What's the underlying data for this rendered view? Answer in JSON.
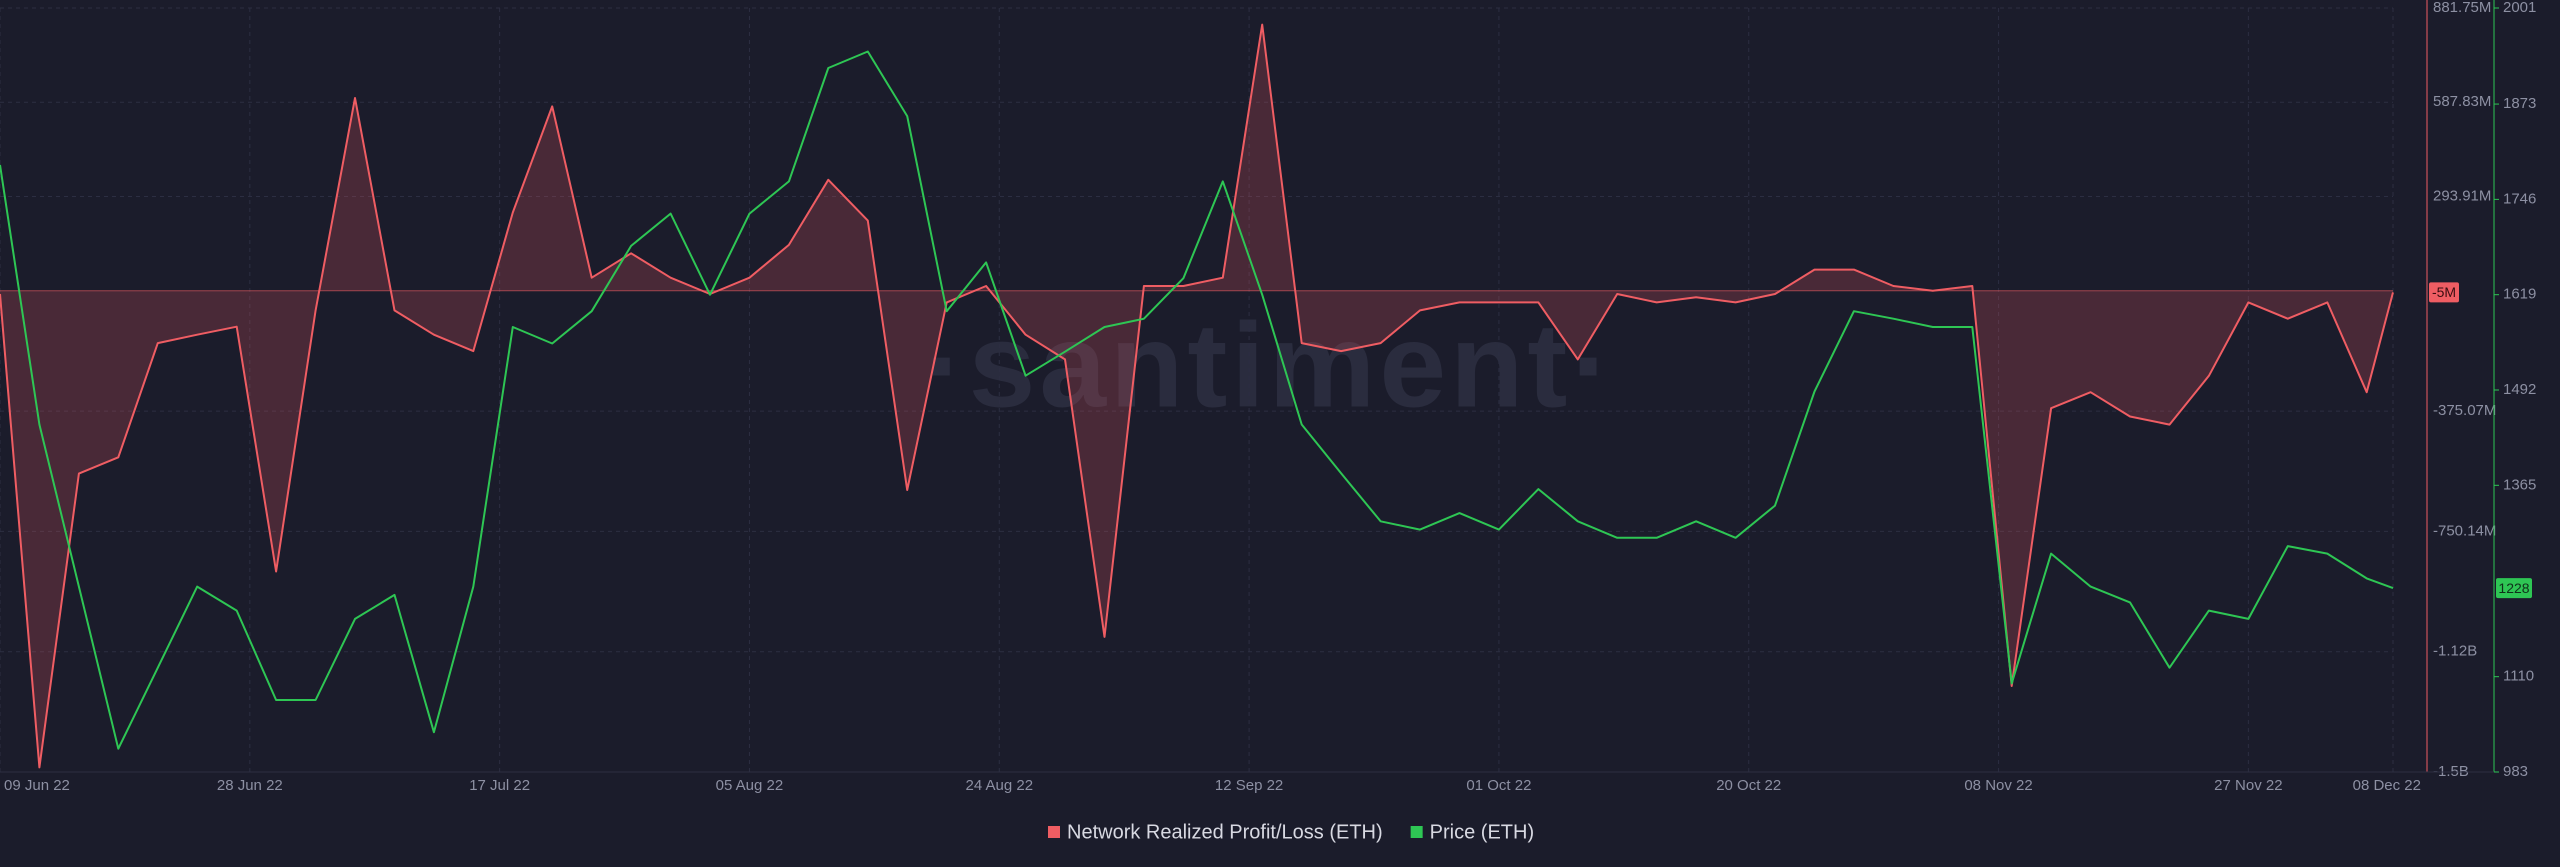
{
  "chart_data": {
    "type": "line",
    "watermark": "·santiment·",
    "x": [
      "2022-06-09",
      "2022-06-12",
      "2022-06-15",
      "2022-06-18",
      "2022-06-21",
      "2022-06-24",
      "2022-06-27",
      "2022-06-30",
      "2022-07-03",
      "2022-07-06",
      "2022-07-09",
      "2022-07-12",
      "2022-07-15",
      "2022-07-18",
      "2022-07-21",
      "2022-07-24",
      "2022-07-27",
      "2022-07-30",
      "2022-08-02",
      "2022-08-05",
      "2022-08-08",
      "2022-08-11",
      "2022-08-14",
      "2022-08-17",
      "2022-08-20",
      "2022-08-23",
      "2022-08-26",
      "2022-08-29",
      "2022-09-01",
      "2022-09-04",
      "2022-09-07",
      "2022-09-10",
      "2022-09-13",
      "2022-09-16",
      "2022-09-19",
      "2022-09-22",
      "2022-09-25",
      "2022-09-28",
      "2022-10-01",
      "2022-10-04",
      "2022-10-07",
      "2022-10-10",
      "2022-10-13",
      "2022-10-16",
      "2022-10-19",
      "2022-10-22",
      "2022-10-25",
      "2022-10-28",
      "2022-10-31",
      "2022-11-03",
      "2022-11-06",
      "2022-11-09",
      "2022-11-12",
      "2022-11-15",
      "2022-11-18",
      "2022-11-21",
      "2022-11-24",
      "2022-11-27",
      "2022-11-30",
      "2022-12-03",
      "2022-12-06",
      "2022-12-08"
    ],
    "series": [
      {
        "name": "Network Realized Profit/Loss (ETH)",
        "color": "#ef5d63",
        "axis": "y",
        "values": [
          -10,
          -1486,
          -570,
          -519,
          -163,
          -137,
          -112,
          -875,
          -61,
          601,
          -61,
          -137,
          -188,
          244,
          575,
          41,
          117,
          41,
          -10,
          41,
          143,
          346,
          219,
          -621,
          -36,
          15,
          -137,
          -214,
          -1079,
          15,
          15,
          41,
          830,
          -163,
          -188,
          -163,
          -61,
          -36,
          -36,
          -36,
          -214,
          -10,
          -36,
          -20,
          -36,
          -10,
          66,
          66,
          15,
          0,
          15,
          -1232,
          -366,
          -316,
          -392,
          -417,
          -265,
          -36,
          -87,
          -36,
          -316,
          -5
        ],
        "value_labels": [
          null,
          null,
          null,
          null,
          null,
          null,
          null,
          null,
          null,
          null,
          null,
          null,
          null,
          null,
          null,
          null,
          null,
          null,
          null,
          null,
          null,
          null,
          null,
          null,
          null,
          null,
          null,
          null,
          null,
          null,
          null,
          null,
          null,
          null,
          null,
          null,
          null,
          null,
          null,
          null,
          null,
          null,
          null,
          null,
          null,
          null,
          null,
          null,
          null,
          null,
          null,
          null,
          null,
          null,
          null,
          null,
          null,
          null,
          null,
          null,
          null,
          "-5M"
        ]
      },
      {
        "name": "Price (ETH)",
        "color": "#2ec654",
        "axis": "y2",
        "values": [
          1792,
          1446,
          1230,
          1014,
          1122,
          1230,
          1198,
          1079,
          1079,
          1187,
          1219,
          1036,
          1230,
          1576,
          1554,
          1597,
          1684,
          1727,
          1619,
          1727,
          1770,
          1921,
          1943,
          1857,
          1597,
          1662,
          1511,
          1543,
          1576,
          1587,
          1641,
          1770,
          1619,
          1446,
          1381,
          1317,
          1306,
          1328,
          1306,
          1360,
          1317,
          1295,
          1295,
          1317,
          1295,
          1338,
          1490,
          1597,
          1587,
          1576,
          1576,
          1101,
          1274,
          1230,
          1209,
          1122,
          1198,
          1187,
          1284,
          1274,
          1241,
          1228
        ]
      }
    ],
    "xlim": [
      "2022-06-09",
      "2022-12-08"
    ],
    "xticks": [
      {
        "value": "2022-06-09",
        "label": "09 Jun 22"
      },
      {
        "value": "2022-06-28",
        "label": "28 Jun 22"
      },
      {
        "value": "2022-07-17",
        "label": "17 Jul 22"
      },
      {
        "value": "2022-08-05",
        "label": "05 Aug 22"
      },
      {
        "value": "2022-08-24",
        "label": "24 Aug 22"
      },
      {
        "value": "2022-09-12",
        "label": "12 Sep 22"
      },
      {
        "value": "2022-10-01",
        "label": "01 Oct 22"
      },
      {
        "value": "2022-10-20",
        "label": "20 Oct 22"
      },
      {
        "value": "2022-11-08",
        "label": "08 Nov 22"
      },
      {
        "value": "2022-11-27",
        "label": "27 Nov 22"
      },
      {
        "value": "2022-12-08",
        "label": "08 Dec 22"
      }
    ],
    "ylim": [
      -1500.28,
      881.75
    ],
    "yticks": [
      {
        "value": 881.75,
        "label": "881.75M"
      },
      {
        "value": 587.83,
        "label": "587.83M"
      },
      {
        "value": 293.91,
        "label": "293.91M"
      },
      {
        "value": -375.07,
        "label": "-375.07M"
      },
      {
        "value": -750.14,
        "label": "-750.14M"
      },
      {
        "value": -1125.21,
        "label": "-1.12B"
      },
      {
        "value": -1500.28,
        "label": "-1.5B"
      }
    ],
    "y2lim": [
      983,
      2001
    ],
    "y2ticks": [
      2001,
      1873,
      1746,
      1619,
      1492,
      1365,
      1110,
      983
    ],
    "grid": true,
    "legend": "bottom"
  }
}
